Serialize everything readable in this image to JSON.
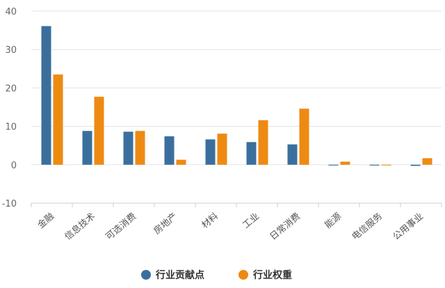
{
  "chart_data": {
    "type": "bar",
    "title": "",
    "xlabel": "",
    "ylabel": "",
    "ylim": [
      -10,
      40
    ],
    "yticks": [
      -10,
      0,
      10,
      20,
      30,
      40
    ],
    "grid": true,
    "legend": "bottom-center",
    "categories": [
      "金融",
      "信息技术",
      "可选消费",
      "房地产",
      "材料",
      "工业",
      "日常消费",
      "能源",
      "电信服务",
      "公用事业"
    ],
    "series": [
      {
        "name": "行业贡献点",
        "color": "#3a6f9d",
        "values": [
          36.1,
          8.8,
          8.6,
          7.4,
          6.6,
          5.9,
          5.3,
          -0.2,
          -0.2,
          -0.3
        ]
      },
      {
        "name": "行业权重",
        "color": "#ee8a12",
        "values": [
          23.5,
          17.7,
          8.8,
          1.3,
          8.1,
          11.6,
          14.6,
          0.8,
          0.0,
          1.7
        ]
      }
    ]
  }
}
